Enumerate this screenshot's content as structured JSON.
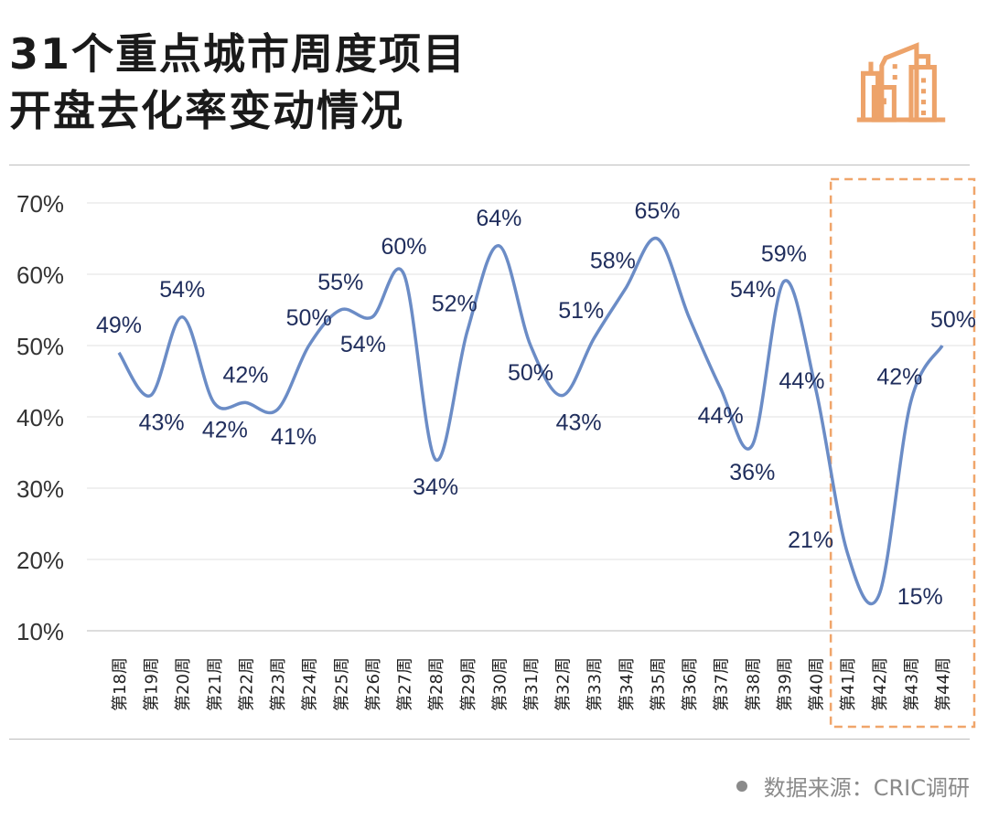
{
  "title_line1": "31个重点城市周度项目",
  "title_line2": "开盘去化率变动情况",
  "icon": "buildings-icon",
  "source": "数据来源：CRIC调研",
  "colors": {
    "line": "#6b8cc6",
    "label": "#1f2d5c",
    "highlight": "#f0a56a",
    "icon": "#eda36a"
  },
  "chart_data": {
    "type": "line",
    "title": "31个重点城市周度项目开盘去化率变动情况",
    "xlabel": "",
    "ylabel": "",
    "ylim": [
      10,
      70
    ],
    "yticks": [
      "10%",
      "20%",
      "30%",
      "40%",
      "50%",
      "60%",
      "70%"
    ],
    "grid": true,
    "categories": [
      "第18周",
      "第19周",
      "第20周",
      "第21周",
      "第22周",
      "第23周",
      "第24周",
      "第25周",
      "第26周",
      "第27周",
      "第28周",
      "第29周",
      "第30周",
      "第31周",
      "第32周",
      "第33周",
      "第34周",
      "第35周",
      "第36周",
      "第37周",
      "第38周",
      "第39周",
      "第40周",
      "第41周",
      "第42周",
      "第43周",
      "第44周"
    ],
    "series": [
      {
        "name": "开盘去化率",
        "values": [
          49,
          43,
          54,
          42,
          42,
          41,
          50,
          55,
          54,
          60,
          34,
          52,
          64,
          50,
          43,
          51,
          58,
          65,
          54,
          44,
          36,
          59,
          44,
          21,
          15,
          42,
          50
        ]
      }
    ],
    "data_labels": [
      "49%",
      "43%",
      "54%",
      "42%",
      "42%",
      "41%",
      "50%",
      "55%",
      "54%",
      "60%",
      "34%",
      "52%",
      "64%",
      "50%",
      "43%",
      "51%",
      "58%",
      "65%",
      "54%",
      "44%",
      "36%",
      "59%",
      "44%",
      "21%",
      "15%",
      "42%",
      "50%"
    ],
    "highlight_range": [
      "第41周",
      "第44周"
    ]
  }
}
